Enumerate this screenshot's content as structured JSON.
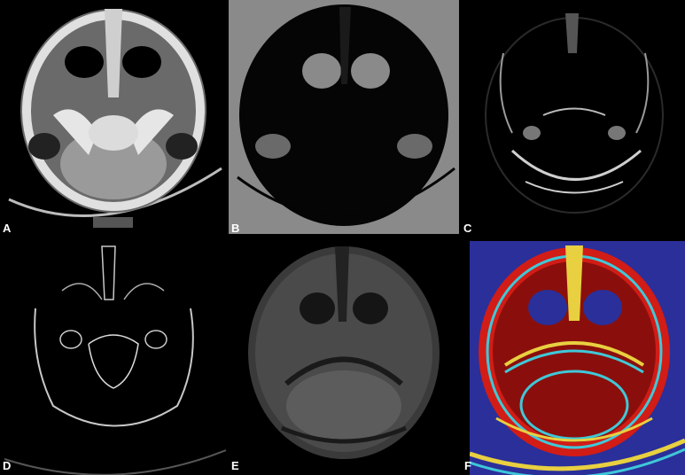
{
  "panels": [
    {
      "label": "A",
      "style": "ct-bone-window"
    },
    {
      "label": "B",
      "style": "thresholded-gray"
    },
    {
      "label": "C",
      "style": "edge-dark"
    },
    {
      "label": "D",
      "style": "edge-outline"
    },
    {
      "label": "E",
      "style": "soft-tissue-gray"
    },
    {
      "label": "F",
      "style": "pseudocolor-segmentation"
    }
  ],
  "colors": {
    "background": "#000000",
    "bone": "#d8d8d8",
    "gray_bg": "#8a8a8a",
    "pseudo_blue": "#2a2f9a",
    "pseudo_red": "#d21c16",
    "pseudo_darkred": "#8a0f0c",
    "pseudo_yellow": "#e8d040",
    "pseudo_cyan": "#3fc8d8"
  }
}
